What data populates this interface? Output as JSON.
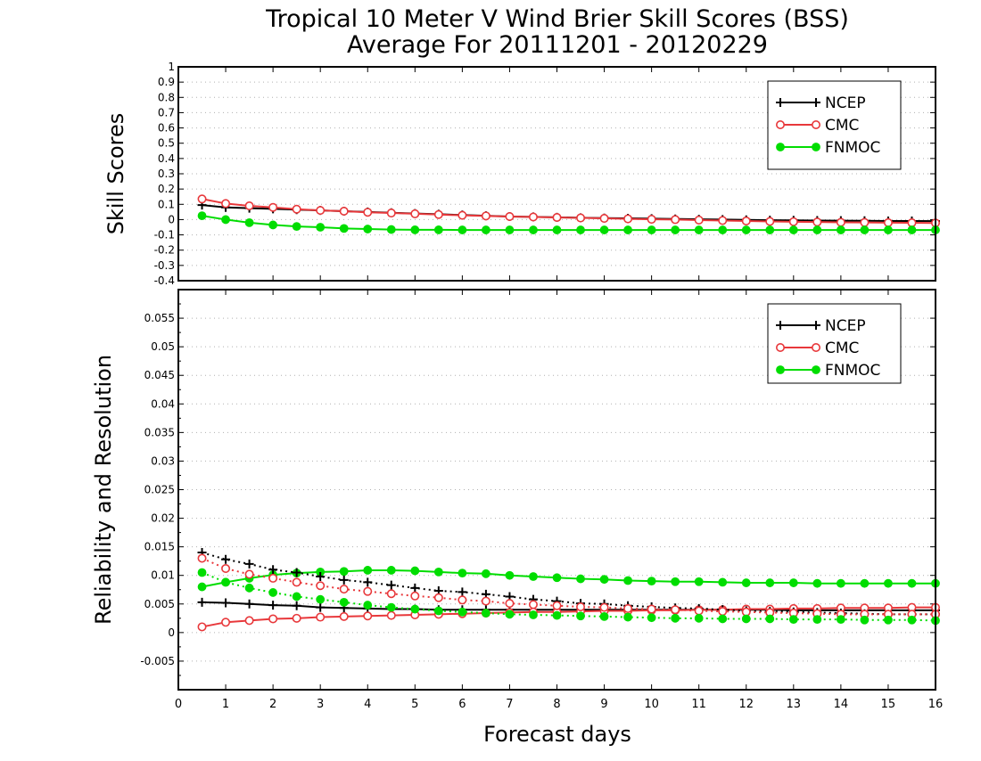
{
  "figure": {
    "title_line1": "Tropical 10 Meter V Wind Brier Skill Scores (BSS)",
    "title_line2": "Average For 20111201 - 20120229",
    "xlabel": "Forecast days"
  },
  "chart_data": [
    {
      "type": "line",
      "ylabel": "Skill Scores",
      "ylim": [
        -0.4,
        1
      ],
      "xlim": [
        0,
        16
      ],
      "x_ticks": [
        "0",
        "1",
        "2",
        "3",
        "4",
        "5",
        "6",
        "7",
        "8",
        "9",
        "10",
        "11",
        "12",
        "13",
        "14",
        "15",
        "16"
      ],
      "y_ticks": [
        "-0.4",
        "-0.3",
        "-0.2",
        "-0.1",
        "0",
        "0.1",
        "0.2",
        "0.3",
        "0.4",
        "0.5",
        "0.6",
        "0.7",
        "0.8",
        "0.9",
        "1"
      ],
      "grid": true,
      "legend_position": "top-right",
      "x": [
        0.5,
        1,
        1.5,
        2,
        2.5,
        3,
        3.5,
        4,
        4.5,
        5,
        5.5,
        6,
        6.5,
        7,
        7.5,
        8,
        8.5,
        9,
        9.5,
        10,
        10.5,
        11,
        11.5,
        12,
        12.5,
        13,
        13.5,
        14,
        14.5,
        15,
        15.5,
        16
      ],
      "series": [
        {
          "name": "NCEP",
          "color": "#000000",
          "marker": "plus",
          "values": [
            0.095,
            0.08,
            0.075,
            0.07,
            0.065,
            0.06,
            0.055,
            0.05,
            0.045,
            0.04,
            0.035,
            0.03,
            0.025,
            0.02,
            0.018,
            0.015,
            0.012,
            0.01,
            0.008,
            0.006,
            0.004,
            0.002,
            0,
            -0.002,
            -0.004,
            -0.005,
            -0.006,
            -0.007,
            -0.008,
            -0.009,
            -0.009,
            -0.01
          ]
        },
        {
          "name": "CMC",
          "color": "#e8383b",
          "marker": "open-circle",
          "values": [
            0.135,
            0.105,
            0.09,
            0.08,
            0.068,
            0.06,
            0.055,
            0.048,
            0.043,
            0.038,
            0.033,
            0.028,
            0.024,
            0.02,
            0.017,
            0.014,
            0.011,
            0.008,
            0.005,
            0.002,
            0,
            -0.003,
            -0.006,
            -0.009,
            -0.012,
            -0.014,
            -0.016,
            -0.018,
            -0.019,
            -0.02,
            -0.021,
            -0.022
          ]
        },
        {
          "name": "FNMOC",
          "color": "#00dd00",
          "marker": "filled-circle",
          "values": [
            0.025,
            0,
            -0.02,
            -0.035,
            -0.045,
            -0.05,
            -0.058,
            -0.062,
            -0.065,
            -0.067,
            -0.067,
            -0.068,
            -0.068,
            -0.068,
            -0.068,
            -0.068,
            -0.068,
            -0.068,
            -0.068,
            -0.068,
            -0.068,
            -0.068,
            -0.068,
            -0.068,
            -0.068,
            -0.068,
            -0.068,
            -0.068,
            -0.068,
            -0.068,
            -0.068,
            -0.068
          ]
        }
      ]
    },
    {
      "type": "line",
      "ylabel": "Reliability and Resolution",
      "ylim": [
        -0.01,
        0.06
      ],
      "xlim": [
        0,
        16
      ],
      "x_ticks": [
        "0",
        "1",
        "2",
        "3",
        "4",
        "5",
        "6",
        "7",
        "8",
        "9",
        "10",
        "11",
        "12",
        "13",
        "14",
        "15",
        "16"
      ],
      "y_ticks": [
        "-0.005",
        "0",
        "0.005",
        "0.01",
        "0.015",
        "0.02",
        "0.025",
        "0.03",
        "0.035",
        "0.04",
        "0.045",
        "0.05",
        "0.055"
      ],
      "grid": true,
      "legend_position": "top-right",
      "x": [
        0.5,
        1,
        1.5,
        2,
        2.5,
        3,
        3.5,
        4,
        4.5,
        5,
        5.5,
        6,
        6.5,
        7,
        7.5,
        8,
        8.5,
        9,
        9.5,
        10,
        10.5,
        11,
        11.5,
        12,
        12.5,
        13,
        13.5,
        14,
        14.5,
        15,
        15.5,
        16
      ],
      "series": [
        {
          "name": "NCEP",
          "color": "#000000",
          "marker": "plus",
          "linestyle": "solid",
          "values": [
            0.0053,
            0.0052,
            0.005,
            0.0048,
            0.0047,
            0.0044,
            0.0043,
            0.0042,
            0.0041,
            0.0041,
            0.004,
            0.004,
            0.004,
            0.004,
            0.004,
            0.004,
            0.004,
            0.004,
            0.004,
            0.004,
            0.004,
            0.004,
            0.004,
            0.004,
            0.004,
            0.0039,
            0.0039,
            0.0039,
            0.0039,
            0.0039,
            0.0039,
            0.0039
          ]
        },
        {
          "name": "CMC",
          "color": "#e8383b",
          "marker": "open-circle",
          "linestyle": "solid",
          "values": [
            0.001,
            0.0018,
            0.0021,
            0.0024,
            0.0025,
            0.0027,
            0.0028,
            0.0029,
            0.003,
            0.0031,
            0.0032,
            0.0033,
            0.0034,
            0.0035,
            0.0036,
            0.0036,
            0.0037,
            0.0038,
            0.0038,
            0.0039,
            0.0039,
            0.004,
            0.004,
            0.0041,
            0.0041,
            0.0042,
            0.0042,
            0.0043,
            0.0043,
            0.0043,
            0.0044,
            0.0044
          ]
        },
        {
          "name": "FNMOC",
          "color": "#00dd00",
          "marker": "filled-circle",
          "linestyle": "solid",
          "values": [
            0.008,
            0.0088,
            0.0095,
            0.0101,
            0.0104,
            0.0106,
            0.0107,
            0.0109,
            0.0109,
            0.0108,
            0.0106,
            0.0104,
            0.0103,
            0.01,
            0.0098,
            0.0096,
            0.0094,
            0.0093,
            0.0091,
            0.009,
            0.0089,
            0.0089,
            0.0088,
            0.0087,
            0.0087,
            0.0087,
            0.0086,
            0.0086,
            0.0086,
            0.0086,
            0.0086,
            0.0086
          ]
        },
        {
          "name": "NCEP",
          "color": "#000000",
          "marker": "plus",
          "linestyle": "dotted",
          "values": [
            0.014,
            0.0128,
            0.012,
            0.011,
            0.0105,
            0.0098,
            0.0092,
            0.0088,
            0.0083,
            0.0078,
            0.0073,
            0.0071,
            0.0067,
            0.0063,
            0.0058,
            0.0055,
            0.0051,
            0.005,
            0.0047,
            0.0045,
            0.0043,
            0.0042,
            0.004,
            0.0038,
            0.0037,
            0.0036,
            0.0035,
            0.0034,
            0.0033,
            0.0032,
            0.0032,
            0.0032
          ]
        },
        {
          "name": "CMC",
          "color": "#e8383b",
          "marker": "open-circle",
          "linestyle": "dotted",
          "values": [
            0.013,
            0.0112,
            0.0102,
            0.0095,
            0.0088,
            0.0082,
            0.0076,
            0.0072,
            0.0068,
            0.0064,
            0.0061,
            0.0057,
            0.0055,
            0.0051,
            0.0049,
            0.0047,
            0.0045,
            0.0044,
            0.0042,
            0.0041,
            0.004,
            0.0038,
            0.0037,
            0.0036,
            0.0035,
            0.0034,
            0.0033,
            0.0032,
            0.0032,
            0.0032,
            0.0032,
            0.0032
          ]
        },
        {
          "name": "FNMOC",
          "color": "#00dd00",
          "marker": "filled-circle",
          "linestyle": "dotted",
          "values": [
            0.0105,
            0.0088,
            0.0078,
            0.007,
            0.0063,
            0.0058,
            0.0053,
            0.0048,
            0.0044,
            0.0041,
            0.0038,
            0.0036,
            0.0034,
            0.0032,
            0.0031,
            0.003,
            0.0029,
            0.0028,
            0.0027,
            0.0026,
            0.0025,
            0.0025,
            0.0024,
            0.0024,
            0.0024,
            0.0023,
            0.0023,
            0.0023,
            0.0022,
            0.0022,
            0.0022,
            0.0021
          ]
        }
      ]
    }
  ]
}
